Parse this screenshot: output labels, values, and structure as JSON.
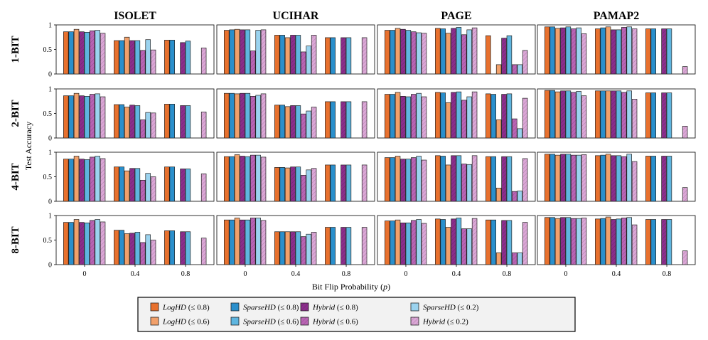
{
  "chart_data": {
    "type": "bar",
    "ylabel": "Test Accuracy",
    "xlabel_text": "Bit Flip Probability (",
    "xlabel_var": "p",
    "xlabel_close": ")",
    "ylim": [
      0,
      1
    ],
    "y_ticks": [
      "0",
      "0.5",
      "1"
    ],
    "categories": [
      "0",
      "0.4",
      "0.8"
    ],
    "columns": [
      "ISOLET",
      "UCIHAR",
      "PAGE",
      "PAMAP2"
    ],
    "rows": [
      "1-BIT",
      "2-BIT",
      "4-BIT",
      "8-BIT"
    ],
    "series": [
      {
        "name": "LogHD (≤ 0.8)",
        "color": "#e8712e",
        "hatch": false
      },
      {
        "name": "LogHD (≤ 0.6)",
        "color": "#f2a06a",
        "hatch": false
      },
      {
        "name": "SparseHD (≤ 0.8)",
        "color": "#2a8fcc",
        "hatch": false
      },
      {
        "name": "SparseHD (≤ 0.6)",
        "color": "#5fb6e0",
        "hatch": false
      },
      {
        "name": "SparseHD (≤ 0.2)",
        "color": "#9bd3ef",
        "hatch": false
      },
      {
        "name": "Hybrid (≤ 0.8)",
        "color": "#8b2e8b",
        "hatch": true
      },
      {
        "name": "Hybrid (≤ 0.6)",
        "color": "#b964b4",
        "hatch": true
      },
      {
        "name": "Hybrid (≤ 0.2)",
        "color": "#dba6d6",
        "hatch": true
      }
    ],
    "bar_order": [
      0,
      2,
      1,
      5,
      3,
      6,
      4,
      7
    ],
    "panels": [
      [
        {
          "0": [
            0.86,
            0.91,
            0.86,
            0.85,
            0.89,
            0.86,
            0.88,
            0.83
          ],
          "0.4": [
            0.68,
            0.75,
            0.68,
            0.68,
            0.7,
            0.68,
            0.48,
            0.49
          ],
          "0.8": [
            0.69,
            0.0,
            0.69,
            0.67,
            0.0,
            0.64,
            0.0,
            0.53
          ]
        },
        {
          "0": [
            0.89,
            0.91,
            0.9,
            0.9,
            0.89,
            0.9,
            0.47,
            0.9
          ],
          "0.4": [
            0.79,
            0.74,
            0.79,
            0.79,
            0.57,
            0.79,
            0.45,
            0.79
          ],
          "0.8": [
            0.74,
            0.0,
            0.74,
            0.74,
            0.0,
            0.74,
            0.0,
            0.74
          ]
        },
        {
          "0": [
            0.89,
            0.93,
            0.89,
            0.89,
            0.84,
            0.91,
            0.86,
            0.83
          ],
          "0.4": [
            0.93,
            0.83,
            0.92,
            0.95,
            0.9,
            0.93,
            0.8,
            0.94
          ],
          "0.8": [
            0.78,
            0.19,
            0.0,
            0.78,
            0.19,
            0.73,
            0.19,
            0.48
          ]
        },
        {
          "0": [
            0.96,
            0.93,
            0.96,
            0.96,
            0.94,
            0.94,
            0.92,
            0.82
          ],
          "0.4": [
            0.92,
            0.96,
            0.94,
            0.9,
            0.96,
            0.9,
            0.95,
            0.92
          ],
          "0.8": [
            0.92,
            0.0,
            0.92,
            0.92,
            0.0,
            0.92,
            0.0,
            0.15
          ]
        }
      ],
      [
        {
          "0": [
            0.86,
            0.91,
            0.86,
            0.85,
            0.9,
            0.86,
            0.89,
            0.84
          ],
          "0.4": [
            0.68,
            0.63,
            0.68,
            0.66,
            0.52,
            0.67,
            0.37,
            0.51
          ],
          "0.8": [
            0.69,
            0.0,
            0.69,
            0.66,
            0.0,
            0.66,
            0.0,
            0.53
          ]
        },
        {
          "0": [
            0.91,
            0.9,
            0.91,
            0.91,
            0.87,
            0.91,
            0.85,
            0.9
          ],
          "0.4": [
            0.67,
            0.64,
            0.67,
            0.66,
            0.55,
            0.66,
            0.49,
            0.63
          ],
          "0.8": [
            0.74,
            0.0,
            0.74,
            0.74,
            0.0,
            0.74,
            0.0,
            0.74
          ]
        },
        {
          "0": [
            0.89,
            0.93,
            0.89,
            0.84,
            0.91,
            0.85,
            0.89,
            0.84
          ],
          "0.4": [
            0.93,
            0.72,
            0.92,
            0.94,
            0.84,
            0.93,
            0.77,
            0.94
          ],
          "0.8": [
            0.9,
            0.37,
            0.89,
            0.9,
            0.19,
            0.89,
            0.39,
            0.81
          ]
        },
        {
          "0": [
            0.97,
            0.94,
            0.97,
            0.96,
            0.95,
            0.96,
            0.93,
            0.86
          ],
          "0.4": [
            0.96,
            0.96,
            0.96,
            0.96,
            0.96,
            0.96,
            0.93,
            0.79
          ],
          "0.8": [
            0.92,
            0.0,
            0.92,
            0.92,
            0.0,
            0.92,
            0.0,
            0.24
          ]
        }
      ],
      [
        {
          "0": [
            0.86,
            0.92,
            0.86,
            0.85,
            0.92,
            0.86,
            0.9,
            0.87
          ],
          "0.4": [
            0.7,
            0.62,
            0.7,
            0.67,
            0.57,
            0.67,
            0.43,
            0.5
          ],
          "0.8": [
            0.7,
            0.0,
            0.7,
            0.66,
            0.0,
            0.66,
            0.0,
            0.56
          ]
        },
        {
          "0": [
            0.91,
            0.95,
            0.91,
            0.91,
            0.94,
            0.92,
            0.94,
            0.9
          ],
          "0.4": [
            0.69,
            0.68,
            0.69,
            0.7,
            0.64,
            0.7,
            0.53,
            0.67
          ],
          "0.8": [
            0.74,
            0.0,
            0.74,
            0.74,
            0.0,
            0.74,
            0.0,
            0.74
          ]
        },
        {
          "0": [
            0.89,
            0.92,
            0.89,
            0.86,
            0.92,
            0.86,
            0.89,
            0.84
          ],
          "0.4": [
            0.93,
            0.74,
            0.92,
            0.93,
            0.75,
            0.93,
            0.76,
            0.93
          ],
          "0.8": [
            0.91,
            0.27,
            0.91,
            0.91,
            0.21,
            0.91,
            0.2,
            0.87
          ]
        },
        {
          "0": [
            0.96,
            0.94,
            0.96,
            0.96,
            0.94,
            0.96,
            0.94,
            0.95
          ],
          "0.4": [
            0.93,
            0.96,
            0.94,
            0.93,
            0.96,
            0.93,
            0.91,
            0.81
          ],
          "0.8": [
            0.92,
            0.0,
            0.92,
            0.92,
            0.0,
            0.92,
            0.0,
            0.28
          ]
        }
      ],
      [
        {
          "0": [
            0.86,
            0.92,
            0.86,
            0.85,
            0.92,
            0.86,
            0.9,
            0.87
          ],
          "0.4": [
            0.7,
            0.63,
            0.7,
            0.66,
            0.61,
            0.64,
            0.45,
            0.5
          ],
          "0.8": [
            0.69,
            0.0,
            0.69,
            0.67,
            0.0,
            0.67,
            0.0,
            0.54
          ]
        },
        {
          "0": [
            0.91,
            0.95,
            0.91,
            0.91,
            0.95,
            0.91,
            0.95,
            0.9
          ],
          "0.4": [
            0.67,
            0.67,
            0.67,
            0.67,
            0.62,
            0.67,
            0.57,
            0.66
          ],
          "0.8": [
            0.76,
            0.0,
            0.76,
            0.76,
            0.0,
            0.76,
            0.0,
            0.76
          ]
        },
        {
          "0": [
            0.89,
            0.91,
            0.89,
            0.85,
            0.92,
            0.85,
            0.9,
            0.84
          ],
          "0.4": [
            0.93,
            0.76,
            0.92,
            0.95,
            0.73,
            0.93,
            0.73,
            0.94
          ],
          "0.8": [
            0.91,
            0.24,
            0.91,
            0.9,
            0.24,
            0.9,
            0.24,
            0.86
          ]
        },
        {
          "0": [
            0.96,
            0.94,
            0.96,
            0.96,
            0.94,
            0.96,
            0.94,
            0.95
          ],
          "0.4": [
            0.93,
            0.97,
            0.94,
            0.93,
            0.96,
            0.92,
            0.95,
            0.81
          ],
          "0.8": [
            0.92,
            0.0,
            0.92,
            0.92,
            0.0,
            0.92,
            0.0,
            0.28
          ]
        }
      ]
    ]
  }
}
